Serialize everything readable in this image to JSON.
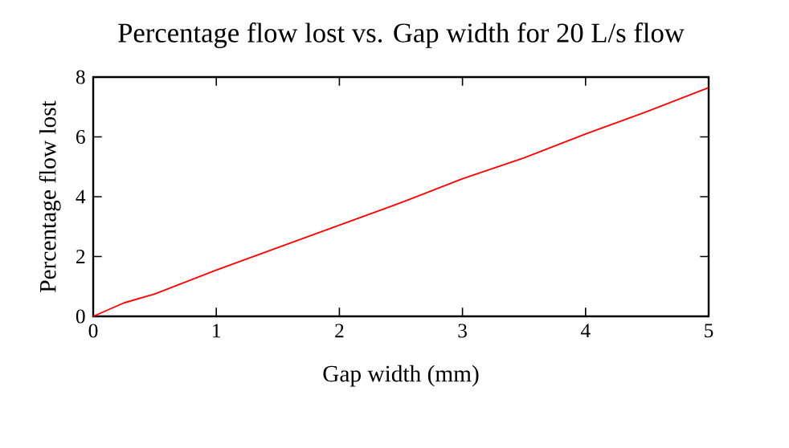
{
  "chart_data": {
    "type": "line",
    "title": "Percentage flow lost vs. Gap width for 20 L/s flow",
    "xlabel": "Gap width (mm)",
    "ylabel": "Percentage flow lost",
    "x": [
      0,
      0.25,
      0.5,
      1,
      1.5,
      2,
      2.5,
      3,
      3.5,
      4,
      4.5,
      5
    ],
    "series": [
      {
        "color": "#ff0000",
        "values": [
          0,
          0.45,
          0.75,
          1.55,
          2.3,
          3.05,
          3.8,
          4.6,
          5.3,
          6.1,
          6.85,
          7.65
        ]
      }
    ],
    "xlim": [
      0,
      5
    ],
    "ylim": [
      0,
      8
    ],
    "xticks": [
      0,
      1,
      2,
      3,
      4,
      5
    ],
    "yticks": [
      0,
      2,
      4,
      6,
      8
    ],
    "marker": "none",
    "line_style": "solid"
  }
}
